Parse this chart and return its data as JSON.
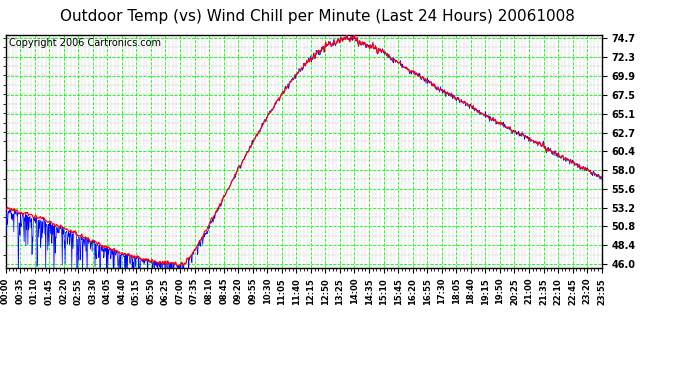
{
  "title": "Outdoor Temp (vs) Wind Chill per Minute (Last 24 Hours) 20061008",
  "copyright": "Copyright 2006 Cartronics.com",
  "yticks": [
    46.0,
    48.4,
    50.8,
    53.2,
    55.6,
    58.0,
    60.4,
    62.7,
    65.1,
    67.5,
    69.9,
    72.3,
    74.7
  ],
  "ylim": [
    45.5,
    75.2
  ],
  "bg_color": "#ffffff",
  "plot_bg_color": "#ffffff",
  "grid_color_major": "#00ff00",
  "grid_color_minor": "#808080",
  "temp_color": "#ff0000",
  "wind_color": "#0000ff",
  "title_fontsize": 11,
  "copyright_fontsize": 7,
  "xtick_labels": [
    "00:00",
    "00:35",
    "01:10",
    "01:45",
    "02:20",
    "02:55",
    "03:30",
    "04:05",
    "04:40",
    "05:15",
    "05:50",
    "06:25",
    "07:00",
    "07:35",
    "08:10",
    "08:45",
    "09:20",
    "09:55",
    "10:30",
    "11:05",
    "11:40",
    "12:15",
    "12:50",
    "13:25",
    "14:00",
    "14:35",
    "15:10",
    "15:45",
    "16:20",
    "16:55",
    "17:30",
    "18:05",
    "18:40",
    "19:15",
    "19:50",
    "20:25",
    "21:00",
    "21:35",
    "22:10",
    "22:45",
    "23:20",
    "23:55"
  ]
}
